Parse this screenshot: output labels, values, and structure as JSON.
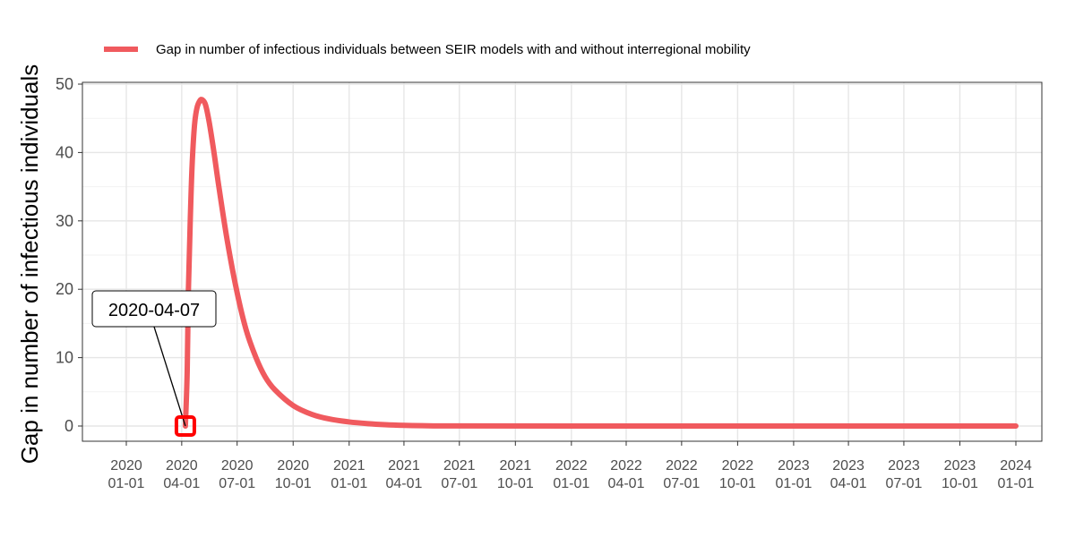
{
  "chart_data": {
    "type": "line",
    "title": "",
    "xlabel": "",
    "ylabel": "Gap in number of infectious individuals",
    "ylim": [
      0,
      50
    ],
    "xlim": [
      "2020-01-01",
      "2024-01-01"
    ],
    "y_ticks": [
      0,
      10,
      20,
      30,
      40,
      50
    ],
    "x_ticks": [
      {
        "date": "2020-01-01",
        "line1": "2020",
        "line2": "01-01"
      },
      {
        "date": "2020-04-01",
        "line1": "2020",
        "line2": "04-01"
      },
      {
        "date": "2020-07-01",
        "line1": "2020",
        "line2": "07-01"
      },
      {
        "date": "2020-10-01",
        "line1": "2020",
        "line2": "10-01"
      },
      {
        "date": "2021-01-01",
        "line1": "2021",
        "line2": "01-01"
      },
      {
        "date": "2021-04-01",
        "line1": "2021",
        "line2": "04-01"
      },
      {
        "date": "2021-07-01",
        "line1": "2021",
        "line2": "07-01"
      },
      {
        "date": "2021-10-01",
        "line1": "2021",
        "line2": "10-01"
      },
      {
        "date": "2022-01-01",
        "line1": "2022",
        "line2": "01-01"
      },
      {
        "date": "2022-04-01",
        "line1": "2022",
        "line2": "04-01"
      },
      {
        "date": "2022-07-01",
        "line1": "2022",
        "line2": "07-01"
      },
      {
        "date": "2022-10-01",
        "line1": "2022",
        "line2": "10-01"
      },
      {
        "date": "2023-01-01",
        "line1": "2023",
        "line2": "01-01"
      },
      {
        "date": "2023-04-01",
        "line1": "2023",
        "line2": "04-01"
      },
      {
        "date": "2023-07-01",
        "line1": "2023",
        "line2": "07-01"
      },
      {
        "date": "2023-10-01",
        "line1": "2023",
        "line2": "10-01"
      },
      {
        "date": "2024-01-01",
        "line1": "2024",
        "line2": "01-01"
      }
    ],
    "grid": true,
    "legend_position": "top",
    "series": [
      {
        "name": "Gap in number of infectious individuals between SEIR models with and without interregional mobility",
        "color": "#f05a5e",
        "points": [
          {
            "x": "2020-04-07",
            "y": 0
          },
          {
            "x": "2020-04-10",
            "y": 8
          },
          {
            "x": "2020-04-12",
            "y": 20
          },
          {
            "x": "2020-04-15",
            "y": 30
          },
          {
            "x": "2020-04-18",
            "y": 38
          },
          {
            "x": "2020-04-22",
            "y": 44
          },
          {
            "x": "2020-04-26",
            "y": 46.5
          },
          {
            "x": "2020-05-01",
            "y": 47.6
          },
          {
            "x": "2020-05-05",
            "y": 47.7
          },
          {
            "x": "2020-05-10",
            "y": 47
          },
          {
            "x": "2020-05-16",
            "y": 44.5
          },
          {
            "x": "2020-05-24",
            "y": 40
          },
          {
            "x": "2020-06-01",
            "y": 35
          },
          {
            "x": "2020-06-15",
            "y": 27
          },
          {
            "x": "2020-07-01",
            "y": 19.5
          },
          {
            "x": "2020-07-16",
            "y": 14
          },
          {
            "x": "2020-08-01",
            "y": 10
          },
          {
            "x": "2020-08-16",
            "y": 7.2
          },
          {
            "x": "2020-09-01",
            "y": 5.3
          },
          {
            "x": "2020-10-01",
            "y": 3.0
          },
          {
            "x": "2020-11-01",
            "y": 1.7
          },
          {
            "x": "2020-12-01",
            "y": 1.0
          },
          {
            "x": "2021-01-01",
            "y": 0.6
          },
          {
            "x": "2021-02-01",
            "y": 0.35
          },
          {
            "x": "2021-03-01",
            "y": 0.2
          },
          {
            "x": "2021-04-01",
            "y": 0.1
          },
          {
            "x": "2021-05-01",
            "y": 0.05
          },
          {
            "x": "2021-07-01",
            "y": 0.01
          },
          {
            "x": "2022-01-01",
            "y": 0
          },
          {
            "x": "2023-01-01",
            "y": 0
          },
          {
            "x": "2024-01-01",
            "y": 0
          }
        ]
      }
    ],
    "annotation": {
      "label": "2020-04-07",
      "x": "2020-04-07",
      "y": 0,
      "marker_color": "#ff0000"
    }
  }
}
